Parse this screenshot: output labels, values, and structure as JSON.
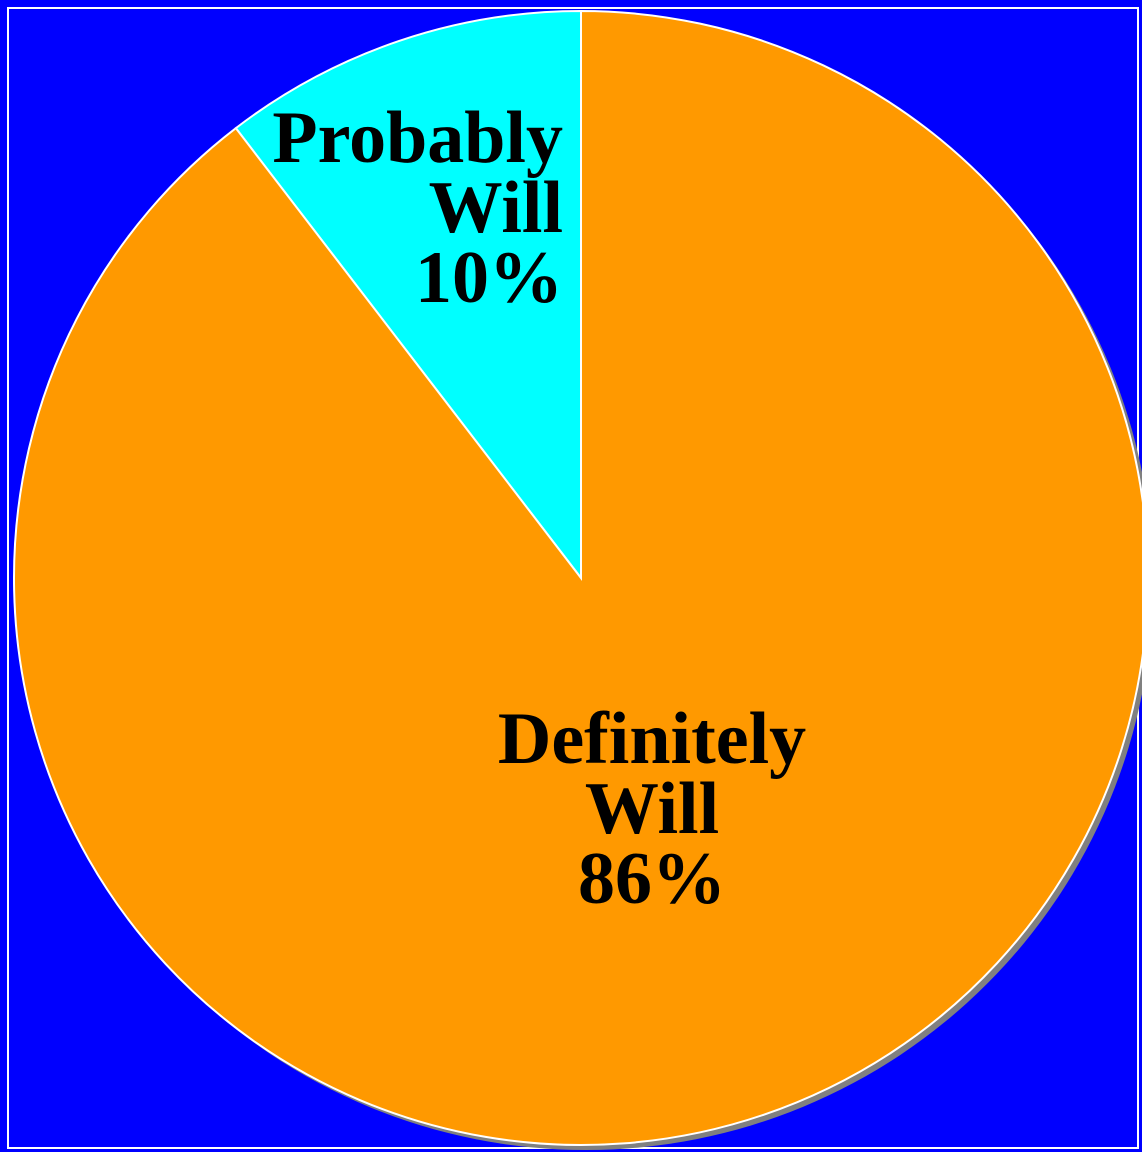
{
  "chart_data": {
    "type": "pie",
    "slices": [
      {
        "label_lines": [
          "Probably",
          "Will",
          "10%"
        ],
        "value": 10,
        "color": "#00ffff"
      },
      {
        "label_lines": [
          "Definitely",
          "Will",
          "86%"
        ],
        "value": 86,
        "color": "#ff9900"
      }
    ],
    "title": "",
    "legend": "none",
    "background_color": "#0000ff",
    "border_color": "#ffffff",
    "slice_edge_color": "#ffffff",
    "shadow_color": "#808080",
    "label_color": "#000000"
  }
}
